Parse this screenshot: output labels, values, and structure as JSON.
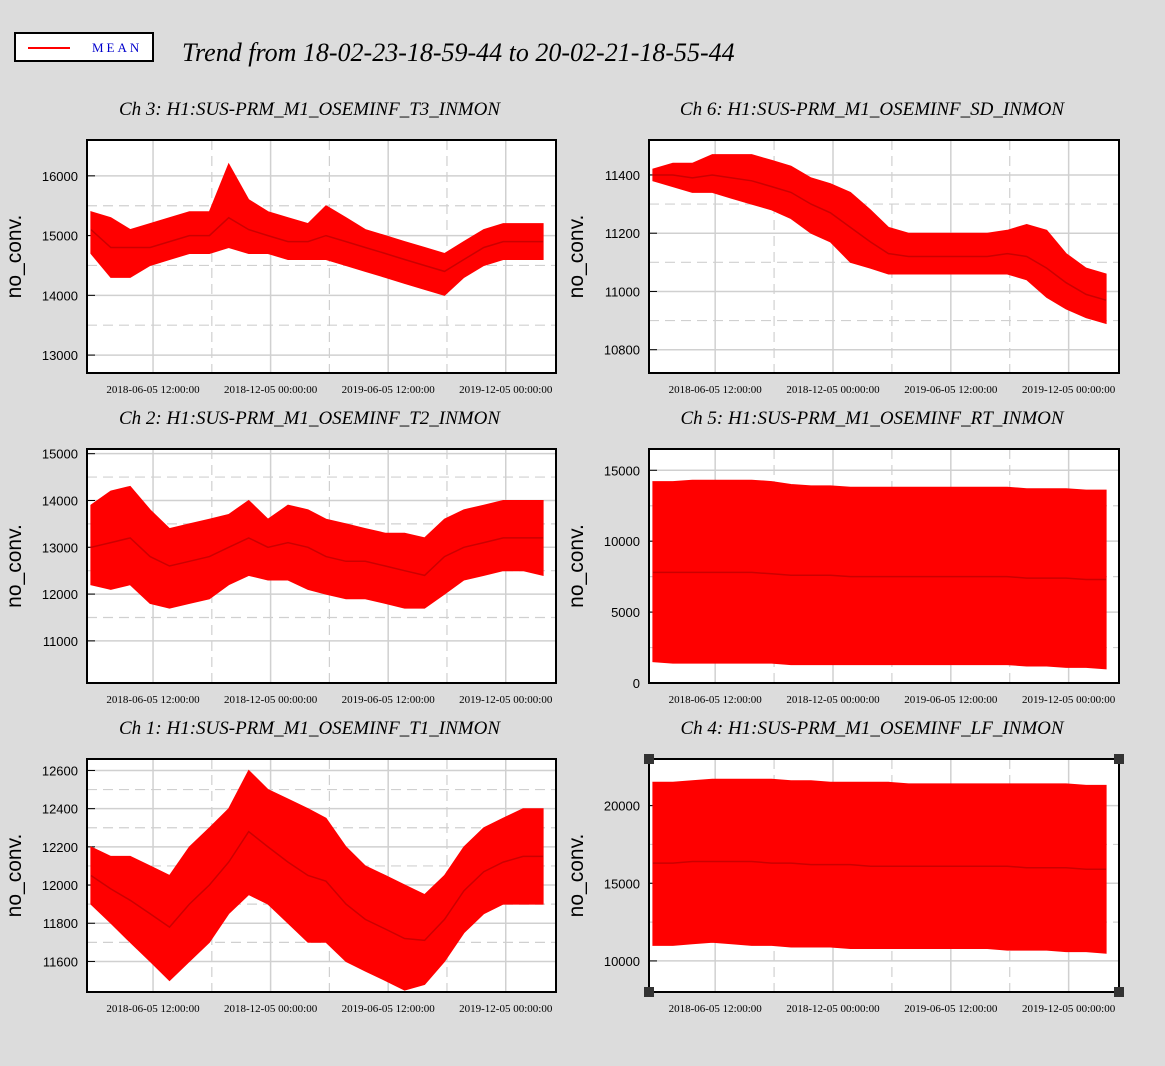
{
  "legend": {
    "label": "MEAN",
    "line_color": "#ff0000"
  },
  "title": "Trend from 18-02-23-18-59-44 to 20-02-21-18-55-44",
  "colors": {
    "series": "#ff0000",
    "background": "#dcdcdc",
    "plot_bg": "#ffffff",
    "grid": "#d0d0d0"
  },
  "chart_data": [
    {
      "type": "line",
      "title": "Ch 3: H1:SUS-PRM_M1_OSEMINF_T3_INMON",
      "ylabel": "no_conv.",
      "ylim": [
        12700,
        16600
      ],
      "yticks": [
        13000,
        14000,
        15000,
        16000
      ],
      "xlim": [
        "2018-02-23",
        "2020-02-21"
      ],
      "xticks": [
        "2018-06-05 12:00:00",
        "2018-12-05 00:00:00",
        "2019-06-05 12:00:00",
        "2019-12-05 00:00:00"
      ],
      "grid": true,
      "series": [
        {
          "x": [
            "2018-03-01",
            "2018-04-01",
            "2018-05-01",
            "2018-06-01",
            "2018-07-01",
            "2018-08-01",
            "2018-09-01",
            "2018-10-01",
            "2018-11-01",
            "2018-12-01",
            "2019-01-01",
            "2019-02-01",
            "2019-03-01",
            "2019-04-01",
            "2019-05-01",
            "2019-06-01",
            "2019-07-01",
            "2019-08-01",
            "2019-09-01",
            "2019-10-01",
            "2019-11-01",
            "2019-12-01",
            "2020-01-01",
            "2020-02-01"
          ],
          "max": [
            15400,
            15300,
            15100,
            15200,
            15300,
            15400,
            15400,
            16200,
            15600,
            15400,
            15300,
            15200,
            15500,
            15300,
            15100,
            15000,
            14900,
            14800,
            14700,
            14900,
            15100,
            15200,
            15200,
            15200
          ],
          "min": [
            14700,
            14300,
            14300,
            14500,
            14600,
            14700,
            14700,
            14800,
            14700,
            14700,
            14600,
            14600,
            14600,
            14500,
            14400,
            14300,
            14200,
            14100,
            14000,
            14300,
            14500,
            14600,
            14600,
            14600
          ],
          "mean": [
            15100,
            14800,
            14800,
            14800,
            14900,
            15000,
            15000,
            15300,
            15100,
            15000,
            14900,
            14900,
            15000,
            14900,
            14800,
            14700,
            14600,
            14500,
            14400,
            14600,
            14800,
            14900,
            14900,
            14900
          ]
        }
      ]
    },
    {
      "type": "line",
      "title": "Ch 6: H1:SUS-PRM_M1_OSEMINF_SD_INMON",
      "ylabel": "no_conv.",
      "ylim": [
        10720,
        11520
      ],
      "yticks": [
        10800,
        11000,
        11200,
        11400
      ],
      "xlim": [
        "2018-02-23",
        "2020-02-21"
      ],
      "xticks": [
        "2018-06-05 12:00:00",
        "2018-12-05 00:00:00",
        "2019-06-05 12:00:00",
        "2019-12-05 00:00:00"
      ],
      "grid": true,
      "series": [
        {
          "x": [
            "2018-03-01",
            "2018-04-01",
            "2018-05-01",
            "2018-06-01",
            "2018-07-01",
            "2018-08-01",
            "2018-09-01",
            "2018-10-01",
            "2018-11-01",
            "2018-12-01",
            "2019-01-01",
            "2019-02-01",
            "2019-03-01",
            "2019-04-01",
            "2019-05-01",
            "2019-06-01",
            "2019-07-01",
            "2019-08-01",
            "2019-09-01",
            "2019-10-01",
            "2019-11-01",
            "2019-12-01",
            "2020-01-01",
            "2020-02-01"
          ],
          "max": [
            11420,
            11440,
            11440,
            11470,
            11470,
            11470,
            11450,
            11430,
            11390,
            11370,
            11340,
            11280,
            11220,
            11200,
            11200,
            11200,
            11200,
            11200,
            11210,
            11230,
            11210,
            11130,
            11080,
            11060
          ],
          "min": [
            11380,
            11360,
            11340,
            11340,
            11320,
            11300,
            11280,
            11250,
            11200,
            11170,
            11100,
            11080,
            11060,
            11060,
            11060,
            11060,
            11060,
            11060,
            11060,
            11040,
            10980,
            10940,
            10910,
            10890
          ],
          "mean": [
            11400,
            11400,
            11390,
            11400,
            11390,
            11380,
            11360,
            11340,
            11300,
            11270,
            11220,
            11170,
            11130,
            11120,
            11120,
            11120,
            11120,
            11120,
            11130,
            11120,
            11080,
            11030,
            10990,
            10970
          ]
        }
      ]
    },
    {
      "type": "line",
      "title": "Ch 2: H1:SUS-PRM_M1_OSEMINF_T2_INMON",
      "ylabel": "no_conv.",
      "ylim": [
        10100,
        15100
      ],
      "yticks": [
        11000,
        12000,
        13000,
        14000,
        15000
      ],
      "xlim": [
        "2018-02-23",
        "2020-02-21"
      ],
      "xticks": [
        "2018-06-05 12:00:00",
        "2018-12-05 00:00:00",
        "2019-06-05 12:00:00",
        "2019-12-05 00:00:00"
      ],
      "grid": true,
      "series": [
        {
          "x": [
            "2018-03-01",
            "2018-04-01",
            "2018-05-01",
            "2018-06-01",
            "2018-07-01",
            "2018-08-01",
            "2018-09-01",
            "2018-10-01",
            "2018-11-01",
            "2018-12-01",
            "2019-01-01",
            "2019-02-01",
            "2019-03-01",
            "2019-04-01",
            "2019-05-01",
            "2019-06-01",
            "2019-07-01",
            "2019-08-01",
            "2019-09-01",
            "2019-10-01",
            "2019-11-01",
            "2019-12-01",
            "2020-01-01",
            "2020-02-01"
          ],
          "max": [
            13900,
            14200,
            14300,
            13800,
            13400,
            13500,
            13600,
            13700,
            14000,
            13600,
            13900,
            13800,
            13600,
            13500,
            13400,
            13300,
            13300,
            13200,
            13600,
            13800,
            13900,
            14000,
            14000,
            14000
          ],
          "min": [
            12200,
            12100,
            12200,
            11800,
            11700,
            11800,
            11900,
            12200,
            12400,
            12300,
            12300,
            12100,
            12000,
            11900,
            11900,
            11800,
            11700,
            11700,
            12000,
            12300,
            12400,
            12500,
            12500,
            12400
          ],
          "mean": [
            13000,
            13100,
            13200,
            12800,
            12600,
            12700,
            12800,
            13000,
            13200,
            13000,
            13100,
            13000,
            12800,
            12700,
            12700,
            12600,
            12500,
            12400,
            12800,
            13000,
            13100,
            13200,
            13200,
            13200
          ]
        }
      ]
    },
    {
      "type": "line",
      "title": "Ch 5: H1:SUS-PRM_M1_OSEMINF_RT_INMON",
      "ylabel": "no_conv.",
      "ylim": [
        0,
        16500
      ],
      "yticks": [
        0,
        5000,
        10000,
        15000
      ],
      "xlim": [
        "2018-02-23",
        "2020-02-21"
      ],
      "xticks": [
        "2018-06-05 12:00:00",
        "2018-12-05 00:00:00",
        "2019-06-05 12:00:00",
        "2019-12-05 00:00:00"
      ],
      "grid": true,
      "series": [
        {
          "x": [
            "2018-03-01",
            "2018-04-01",
            "2018-05-01",
            "2018-06-01",
            "2018-07-01",
            "2018-08-01",
            "2018-09-01",
            "2018-10-01",
            "2018-11-01",
            "2018-12-01",
            "2019-01-01",
            "2019-02-01",
            "2019-03-01",
            "2019-04-01",
            "2019-05-01",
            "2019-06-01",
            "2019-07-01",
            "2019-08-01",
            "2019-09-01",
            "2019-10-01",
            "2019-11-01",
            "2019-12-01",
            "2020-01-01",
            "2020-02-01"
          ],
          "max": [
            14200,
            14200,
            14300,
            14300,
            14300,
            14300,
            14200,
            14000,
            13900,
            13900,
            13800,
            13800,
            13800,
            13800,
            13800,
            13800,
            13800,
            13800,
            13800,
            13700,
            13700,
            13700,
            13600,
            13600
          ],
          "min": [
            1500,
            1400,
            1400,
            1400,
            1400,
            1400,
            1400,
            1300,
            1300,
            1300,
            1300,
            1300,
            1300,
            1300,
            1300,
            1300,
            1300,
            1300,
            1300,
            1200,
            1200,
            1100,
            1100,
            1000
          ],
          "mean": [
            7800,
            7800,
            7800,
            7800,
            7800,
            7800,
            7700,
            7600,
            7600,
            7600,
            7500,
            7500,
            7500,
            7500,
            7500,
            7500,
            7500,
            7500,
            7500,
            7400,
            7400,
            7400,
            7300,
            7300
          ]
        }
      ]
    },
    {
      "type": "line",
      "title": "Ch 1: H1:SUS-PRM_M1_OSEMINF_T1_INMON",
      "ylabel": "no_conv.",
      "ylim": [
        11440,
        12660
      ],
      "yticks": [
        11600,
        11800,
        12000,
        12200,
        12400,
        12600
      ],
      "xlim": [
        "2018-02-23",
        "2020-02-21"
      ],
      "xticks": [
        "2018-06-05 12:00:00",
        "2018-12-05 00:00:00",
        "2019-06-05 12:00:00",
        "2019-12-05 00:00:00"
      ],
      "grid": true,
      "series": [
        {
          "x": [
            "2018-03-01",
            "2018-04-01",
            "2018-05-01",
            "2018-06-01",
            "2018-07-01",
            "2018-08-01",
            "2018-09-01",
            "2018-10-01",
            "2018-11-01",
            "2018-12-01",
            "2019-01-01",
            "2019-02-01",
            "2019-03-01",
            "2019-04-01",
            "2019-05-01",
            "2019-06-01",
            "2019-07-01",
            "2019-08-01",
            "2019-09-01",
            "2019-10-01",
            "2019-11-01",
            "2019-12-01",
            "2020-01-01",
            "2020-02-01"
          ],
          "max": [
            12200,
            12150,
            12150,
            12100,
            12050,
            12200,
            12300,
            12400,
            12600,
            12500,
            12450,
            12400,
            12350,
            12200,
            12100,
            12050,
            12000,
            11950,
            12050,
            12200,
            12300,
            12350,
            12400,
            12400
          ],
          "min": [
            11900,
            11800,
            11700,
            11600,
            11500,
            11600,
            11700,
            11850,
            11950,
            11900,
            11800,
            11700,
            11700,
            11600,
            11550,
            11500,
            11450,
            11480,
            11600,
            11750,
            11850,
            11900,
            11900,
            11900
          ],
          "mean": [
            12050,
            11980,
            11920,
            11850,
            11780,
            11900,
            12000,
            12120,
            12280,
            12200,
            12120,
            12050,
            12020,
            11900,
            11820,
            11770,
            11720,
            11710,
            11820,
            11970,
            12070,
            12120,
            12150,
            12150
          ]
        }
      ]
    },
    {
      "type": "line",
      "title": "Ch 4: H1:SUS-PRM_M1_OSEMINF_LF_INMON",
      "ylabel": "no_conv.",
      "ylim": [
        8000,
        23000
      ],
      "yticks": [
        10000,
        15000,
        20000
      ],
      "xlim": [
        "2018-02-23",
        "2020-02-21"
      ],
      "xticks": [
        "2018-06-05 12:00:00",
        "2018-12-05 00:00:00",
        "2019-06-05 12:00:00",
        "2019-12-05 00:00:00"
      ],
      "grid": true,
      "series": [
        {
          "x": [
            "2018-03-01",
            "2018-04-01",
            "2018-05-01",
            "2018-06-01",
            "2018-07-01",
            "2018-08-01",
            "2018-09-01",
            "2018-10-01",
            "2018-11-01",
            "2018-12-01",
            "2019-01-01",
            "2019-02-01",
            "2019-03-01",
            "2019-04-01",
            "2019-05-01",
            "2019-06-01",
            "2019-07-01",
            "2019-08-01",
            "2019-09-01",
            "2019-10-01",
            "2019-11-01",
            "2019-12-01",
            "2020-01-01",
            "2020-02-01"
          ],
          "max": [
            21500,
            21500,
            21600,
            21700,
            21700,
            21700,
            21700,
            21600,
            21600,
            21500,
            21500,
            21500,
            21500,
            21400,
            21400,
            21400,
            21400,
            21400,
            21400,
            21400,
            21400,
            21400,
            21300,
            21300
          ],
          "min": [
            11000,
            11000,
            11100,
            11200,
            11100,
            11000,
            11000,
            10900,
            10900,
            10900,
            10800,
            10800,
            10800,
            10800,
            10800,
            10800,
            10800,
            10800,
            10700,
            10700,
            10700,
            10600,
            10600,
            10500
          ],
          "mean": [
            16300,
            16300,
            16400,
            16400,
            16400,
            16400,
            16300,
            16300,
            16200,
            16200,
            16200,
            16100,
            16100,
            16100,
            16100,
            16100,
            16100,
            16100,
            16100,
            16000,
            16000,
            16000,
            15900,
            15900
          ]
        }
      ]
    }
  ]
}
